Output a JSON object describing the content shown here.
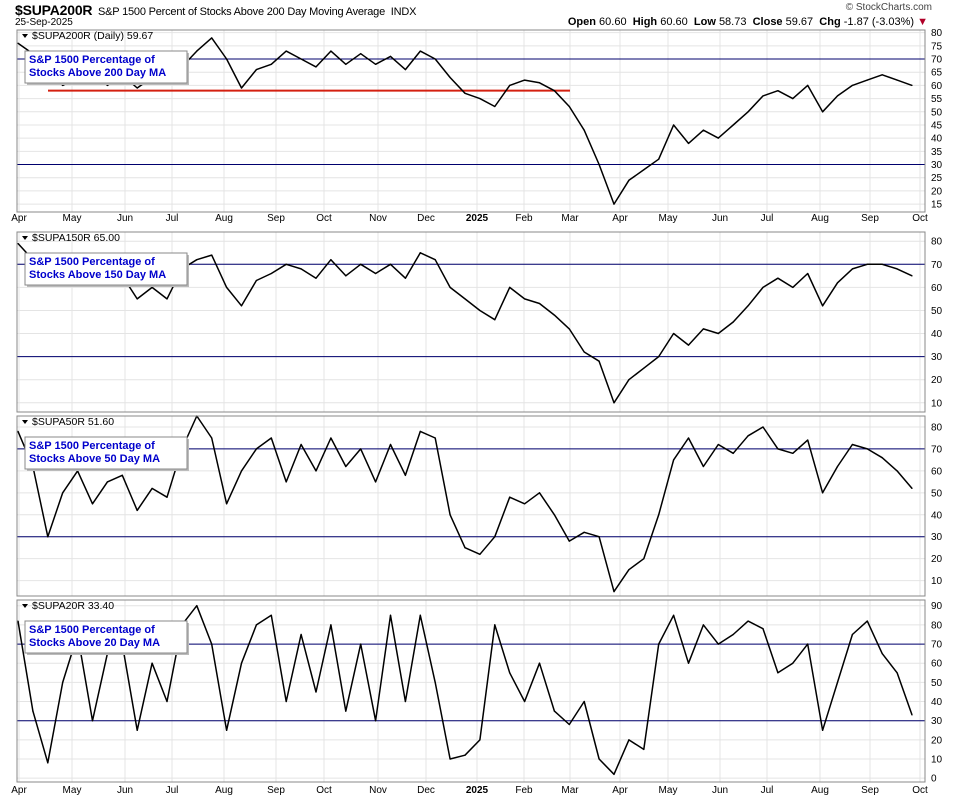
{
  "header": {
    "symbol": "$SUPA200R",
    "description": "S&P 1500 Percent of Stocks Above 200 Day Moving Average",
    "exchange": "INDX",
    "date": "25-Sep-2025",
    "brand": "© StockCharts.com",
    "open_label": "Open",
    "open": "60.60",
    "high_label": "High",
    "high": "60.60",
    "low_label": "Low",
    "low": "58.73",
    "close_label": "Close",
    "close": "59.67",
    "chg_label": "Chg",
    "chg": "-1.87 (-3.03%)",
    "chg_arrow": "▼"
  },
  "colors": {
    "line": "#000000",
    "reference_line": "#00006e",
    "support_line": "#d42010",
    "grid": "#e4e4e4",
    "label_text": "#0000cc",
    "change": "#b00028"
  },
  "chart_data": [
    {
      "type": "line",
      "legend": "$SUPA200R (Daily) 59.67",
      "title": "S&P 1500 Percentage of\nStocks Above 200 Day MA",
      "x_tick_labels": [
        "Apr",
        "May",
        "Jun",
        "Jul",
        "Aug",
        "Sep",
        "Oct",
        "Nov",
        "Dec",
        "2025",
        "Feb",
        "Mar",
        "Apr",
        "May",
        "Jun",
        "Jul",
        "Aug",
        "Sep",
        "Oct"
      ],
      "yticks": [
        15,
        20,
        25,
        30,
        35,
        40,
        45,
        50,
        55,
        60,
        65,
        70,
        75,
        80
      ],
      "ylim": [
        12,
        81
      ],
      "reference_lines": [
        70,
        30
      ],
      "support_line": {
        "value": 58,
        "from": "Apr",
        "to": "Mar"
      },
      "x": [
        "Apr",
        "Apr",
        "Apr",
        "May",
        "May",
        "May",
        "May",
        "Jun",
        "Jun",
        "Jun",
        "Jul",
        "Jul",
        "Jul",
        "Aug",
        "Aug",
        "Aug",
        "Aug",
        "Sep",
        "Sep",
        "Sep",
        "Oct",
        "Oct",
        "Oct",
        "Oct",
        "Nov",
        "Nov",
        "Nov",
        "Dec",
        "Dec",
        "Dec",
        "2025",
        "2025",
        "2025",
        "Feb",
        "Feb",
        "Feb",
        "Mar",
        "Mar",
        "Mar",
        "Mar",
        "Apr",
        "Apr",
        "Apr",
        "May",
        "May",
        "May",
        "May",
        "Jun",
        "Jun",
        "Jun",
        "Jul",
        "Jul",
        "Jul",
        "Aug",
        "Aug",
        "Aug",
        "Aug",
        "Sep",
        "Sep",
        "Sep",
        "Oct"
      ],
      "values": [
        76,
        72,
        66,
        60,
        63,
        66,
        60,
        64,
        59,
        63,
        61,
        67,
        73,
        78,
        70,
        59,
        66,
        68,
        73,
        70,
        67,
        73,
        68,
        72,
        68,
        71,
        66,
        73,
        70,
        63,
        57,
        55,
        52,
        60,
        62,
        61,
        58,
        52,
        43,
        30,
        15,
        24,
        28,
        32,
        45,
        38,
        43,
        40,
        45,
        50,
        56,
        58,
        55,
        60,
        50,
        56,
        60,
        62,
        64,
        62,
        60
      ]
    },
    {
      "type": "line",
      "legend": "$SUPA150R 65.00",
      "title": "S&P 1500 Percentage of\nStocks Above 150 Day MA",
      "yticks": [
        10,
        20,
        30,
        40,
        50,
        60,
        70,
        80
      ],
      "ylim": [
        6,
        84
      ],
      "reference_lines": [
        70,
        30
      ],
      "x": [
        "Apr",
        "Apr",
        "Apr",
        "May",
        "May",
        "May",
        "May",
        "Jun",
        "Jun",
        "Jun",
        "Jul",
        "Jul",
        "Jul",
        "Aug",
        "Aug",
        "Aug",
        "Aug",
        "Sep",
        "Sep",
        "Sep",
        "Oct",
        "Oct",
        "Oct",
        "Oct",
        "Nov",
        "Nov",
        "Nov",
        "Dec",
        "Dec",
        "Dec",
        "2025",
        "2025",
        "2025",
        "Feb",
        "Feb",
        "Feb",
        "Mar",
        "Mar",
        "Mar",
        "Mar",
        "Apr",
        "Apr",
        "Apr",
        "May",
        "May",
        "May",
        "May",
        "Jun",
        "Jun",
        "Jun",
        "Jul",
        "Jul",
        "Jul",
        "Aug",
        "Aug",
        "Aug",
        "Aug",
        "Sep",
        "Sep",
        "Sep",
        "Oct"
      ],
      "values": [
        79,
        72,
        63,
        62,
        68,
        70,
        62,
        65,
        55,
        60,
        55,
        68,
        72,
        74,
        60,
        52,
        63,
        66,
        70,
        68,
        64,
        72,
        65,
        70,
        66,
        70,
        64,
        75,
        72,
        60,
        55,
        50,
        46,
        60,
        55,
        53,
        48,
        42,
        32,
        28,
        10,
        20,
        25,
        30,
        40,
        35,
        42,
        40,
        45,
        52,
        60,
        64,
        60,
        66,
        52,
        62,
        68,
        70,
        70,
        68,
        65
      ]
    },
    {
      "type": "line",
      "legend": "$SUPA50R 51.60",
      "title": "S&P 1500 Percentage of\nStocks Above 50 Day MA",
      "yticks": [
        10,
        20,
        30,
        40,
        50,
        60,
        70,
        80
      ],
      "ylim": [
        3,
        85
      ],
      "reference_lines": [
        70,
        30
      ],
      "x": [
        "Apr",
        "Apr",
        "Apr",
        "May",
        "May",
        "May",
        "May",
        "Jun",
        "Jun",
        "Jun",
        "Jul",
        "Jul",
        "Jul",
        "Aug",
        "Aug",
        "Aug",
        "Aug",
        "Sep",
        "Sep",
        "Sep",
        "Oct",
        "Oct",
        "Oct",
        "Oct",
        "Nov",
        "Nov",
        "Nov",
        "Dec",
        "Dec",
        "Dec",
        "2025",
        "2025",
        "2025",
        "Feb",
        "Feb",
        "Feb",
        "Mar",
        "Mar",
        "Mar",
        "Mar",
        "Apr",
        "Apr",
        "Apr",
        "May",
        "May",
        "May",
        "May",
        "Jun",
        "Jun",
        "Jun",
        "Jul",
        "Jul",
        "Jul",
        "Aug",
        "Aug",
        "Aug",
        "Aug",
        "Sep",
        "Sep",
        "Sep",
        "Oct"
      ],
      "values": [
        78,
        62,
        30,
        50,
        60,
        45,
        55,
        58,
        42,
        52,
        48,
        70,
        85,
        75,
        45,
        60,
        70,
        75,
        55,
        72,
        60,
        75,
        62,
        70,
        55,
        72,
        58,
        78,
        75,
        40,
        25,
        22,
        30,
        48,
        45,
        50,
        40,
        28,
        32,
        30,
        5,
        15,
        20,
        40,
        65,
        75,
        62,
        72,
        68,
        76,
        80,
        70,
        68,
        74,
        50,
        62,
        72,
        70,
        66,
        60,
        52
      ]
    },
    {
      "type": "line",
      "legend": "$SUPA20R 33.40",
      "title": "S&P 1500 Percentage of\nStocks Above 20 Day MA",
      "yticks": [
        0,
        10,
        20,
        30,
        40,
        50,
        60,
        70,
        80,
        90
      ],
      "ylim": [
        -2,
        93
      ],
      "reference_lines": [
        70,
        30
      ],
      "x": [
        "Apr",
        "Apr",
        "Apr",
        "May",
        "May",
        "May",
        "May",
        "Jun",
        "Jun",
        "Jun",
        "Jul",
        "Jul",
        "Jul",
        "Aug",
        "Aug",
        "Aug",
        "Aug",
        "Sep",
        "Sep",
        "Sep",
        "Oct",
        "Oct",
        "Oct",
        "Oct",
        "Nov",
        "Nov",
        "Nov",
        "Dec",
        "Dec",
        "Dec",
        "2025",
        "2025",
        "2025",
        "Feb",
        "Feb",
        "Feb",
        "Mar",
        "Mar",
        "Mar",
        "Mar",
        "Apr",
        "Apr",
        "Apr",
        "May",
        "May",
        "May",
        "May",
        "Jun",
        "Jun",
        "Jun",
        "Jul",
        "Jul",
        "Jul",
        "Aug",
        "Aug",
        "Aug",
        "Aug",
        "Sep",
        "Sep",
        "Sep",
        "Oct"
      ],
      "values": [
        82,
        35,
        8,
        50,
        75,
        30,
        65,
        70,
        25,
        60,
        40,
        80,
        90,
        70,
        25,
        60,
        80,
        85,
        40,
        75,
        45,
        80,
        35,
        70,
        30,
        85,
        40,
        85,
        50,
        10,
        12,
        20,
        80,
        55,
        40,
        60,
        35,
        28,
        40,
        10,
        2,
        20,
        15,
        70,
        85,
        60,
        80,
        70,
        75,
        82,
        78,
        55,
        60,
        70,
        25,
        50,
        75,
        82,
        65,
        55,
        33
      ]
    }
  ]
}
